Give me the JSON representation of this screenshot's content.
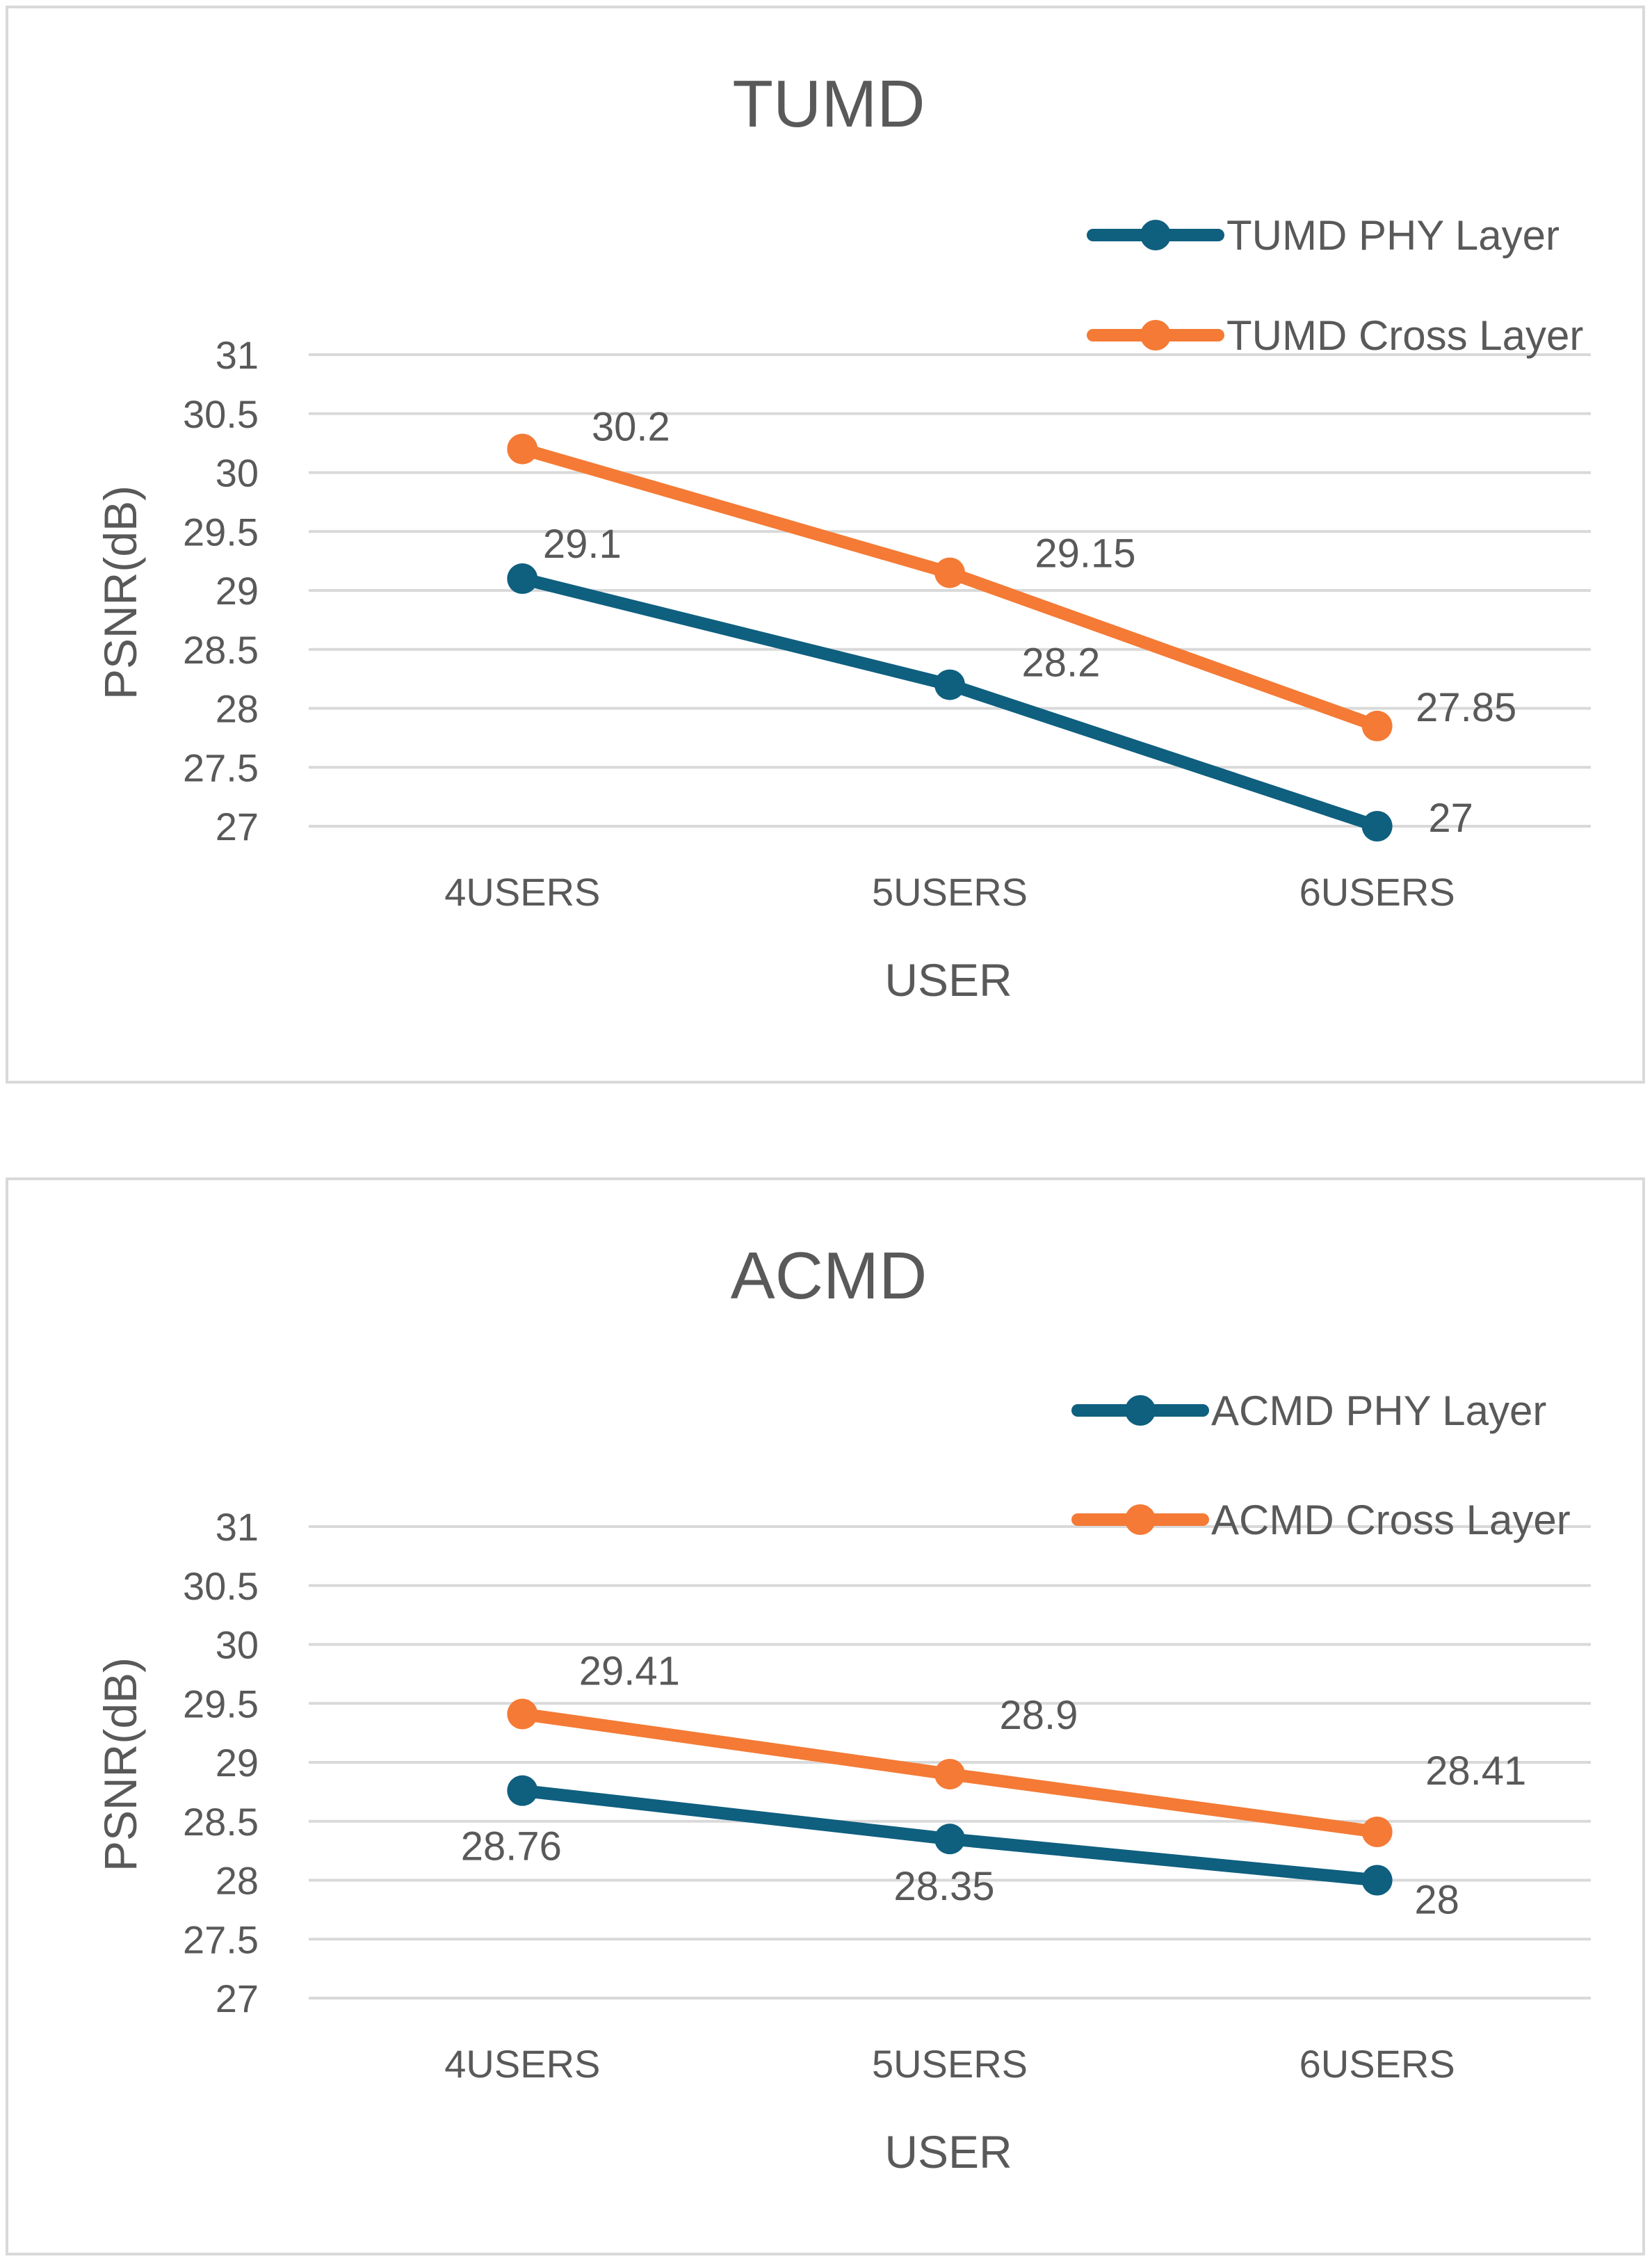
{
  "chart_data": [
    {
      "type": "line",
      "title": "TUMD",
      "xlabel": "USER",
      "ylabel": "PSNR(dB)",
      "categories": [
        "4USERS",
        "5USERS",
        "6USERS"
      ],
      "ylim": [
        27,
        31
      ],
      "yticks": [
        "27",
        "27.5",
        "28",
        "28.5",
        "29",
        "29.5",
        "30",
        "30.5",
        "31"
      ],
      "legend_position": "top-right",
      "series": [
        {
          "name": "TUMD PHY Layer",
          "color": "#0f5f7f",
          "values": [
            29.1,
            28.2,
            27
          ],
          "labels": [
            "29.1",
            "28.2",
            "27"
          ],
          "label_side": "above"
        },
        {
          "name": "TUMD Cross Layer",
          "color": "#f47a35",
          "values": [
            30.2,
            29.15,
            27.85
          ],
          "labels": [
            "30.2",
            "29.15",
            "27.85"
          ],
          "label_side": "above"
        }
      ]
    },
    {
      "type": "line",
      "title": "ACMD",
      "xlabel": "USER",
      "ylabel": "PSNR(dB)",
      "categories": [
        "4USERS",
        "5USERS",
        "6USERS"
      ],
      "ylim": [
        27,
        31
      ],
      "yticks": [
        "27",
        "27.5",
        "28",
        "28.5",
        "29",
        "29.5",
        "30",
        "30.5",
        "31"
      ],
      "legend_position": "top-right",
      "series": [
        {
          "name": "ACMD PHY Layer",
          "color": "#0f5f7f",
          "values": [
            28.76,
            28.35,
            28
          ],
          "labels": [
            "28.76",
            "28.35",
            "28"
          ],
          "label_side": "below"
        },
        {
          "name": "ACMD Cross Layer",
          "color": "#f47a35",
          "values": [
            29.41,
            28.9,
            28.41
          ],
          "labels": [
            "29.41",
            "28.9",
            "28.41"
          ],
          "label_side": "above"
        }
      ]
    }
  ]
}
